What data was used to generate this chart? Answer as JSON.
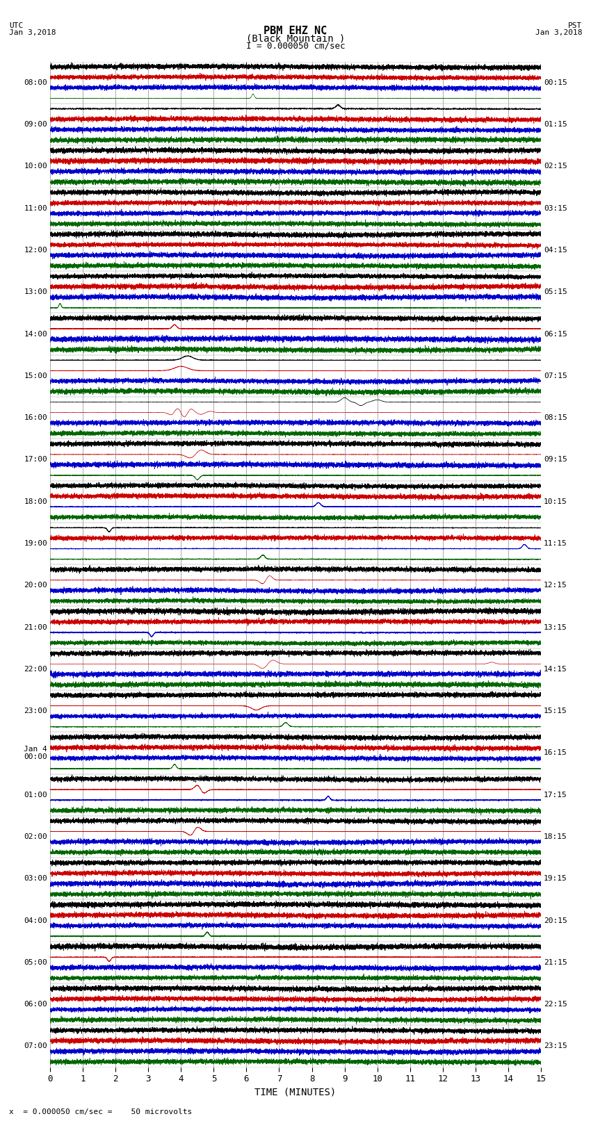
{
  "title_line1": "PBM EHZ NC",
  "title_line2": "(Black Mountain )",
  "scale_label": "I = 0.000050 cm/sec",
  "left_label_line1": "UTC",
  "left_label_line2": "Jan 3,2018",
  "right_label_line1": "PST",
  "right_label_line2": "Jan 3,2018",
  "xlabel": "TIME (MINUTES)",
  "bottom_note": "x  = 0.000050 cm/sec =    50 microvolts",
  "bg_color": "#ffffff",
  "trace_colors": [
    "#000000",
    "#cc0000",
    "#0000cc",
    "#006600"
  ],
  "utc_labels": [
    "08:00",
    "09:00",
    "10:00",
    "11:00",
    "12:00",
    "13:00",
    "14:00",
    "15:00",
    "16:00",
    "17:00",
    "18:00",
    "19:00",
    "20:00",
    "21:00",
    "22:00",
    "23:00",
    "Jan 4\n00:00",
    "01:00",
    "02:00",
    "03:00",
    "04:00",
    "05:00",
    "06:00",
    "07:00"
  ],
  "pst_labels": [
    "00:15",
    "01:15",
    "02:15",
    "03:15",
    "04:15",
    "05:15",
    "06:15",
    "07:15",
    "08:15",
    "09:15",
    "10:15",
    "11:15",
    "12:15",
    "13:15",
    "14:15",
    "15:15",
    "16:15",
    "17:15",
    "18:15",
    "19:15",
    "20:15",
    "21:15",
    "22:15",
    "23:15"
  ]
}
